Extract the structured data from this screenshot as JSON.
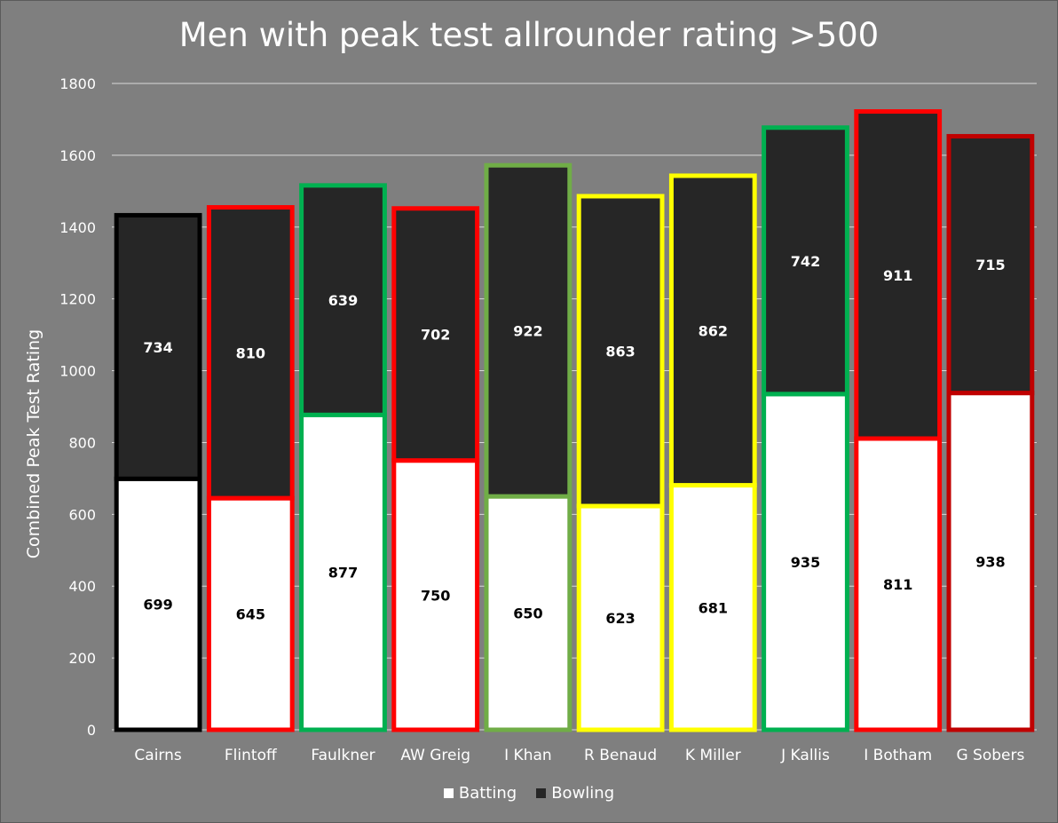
{
  "chart_data": {
    "type": "bar",
    "stacked": true,
    "title": "Men with peak test allrounder rating >500",
    "ylabel": "Combined Peak Test Rating",
    "xlabel": "",
    "ylim": [
      0,
      1800
    ],
    "yticks": [
      0,
      200,
      400,
      600,
      800,
      1000,
      1200,
      1400,
      1600,
      1800
    ],
    "grid": true,
    "legend_position": "bottom",
    "categories": [
      "Cairns",
      "Flintoff",
      "Faulkner",
      "AW Greig",
      "I Khan",
      "R Benaud",
      "K Miller",
      "J Kallis",
      "I Botham",
      "G Sobers"
    ],
    "series": [
      {
        "name": "Batting",
        "color": "#ffffff",
        "values": [
          699,
          645,
          877,
          750,
          650,
          623,
          681,
          935,
          811,
          938
        ]
      },
      {
        "name": "Bowling",
        "color": "#262626",
        "values": [
          734,
          810,
          639,
          702,
          922,
          863,
          862,
          742,
          911,
          715
        ]
      }
    ],
    "bar_border_colors": [
      "#000000",
      "#ff0000",
      "#00b050",
      "#ff0000",
      "#70ad47",
      "#ffff00",
      "#ffff00",
      "#00b050",
      "#ff0000",
      "#c00000"
    ],
    "grid_color": "#d9d9d9",
    "background_color": "#7f7f7f"
  }
}
